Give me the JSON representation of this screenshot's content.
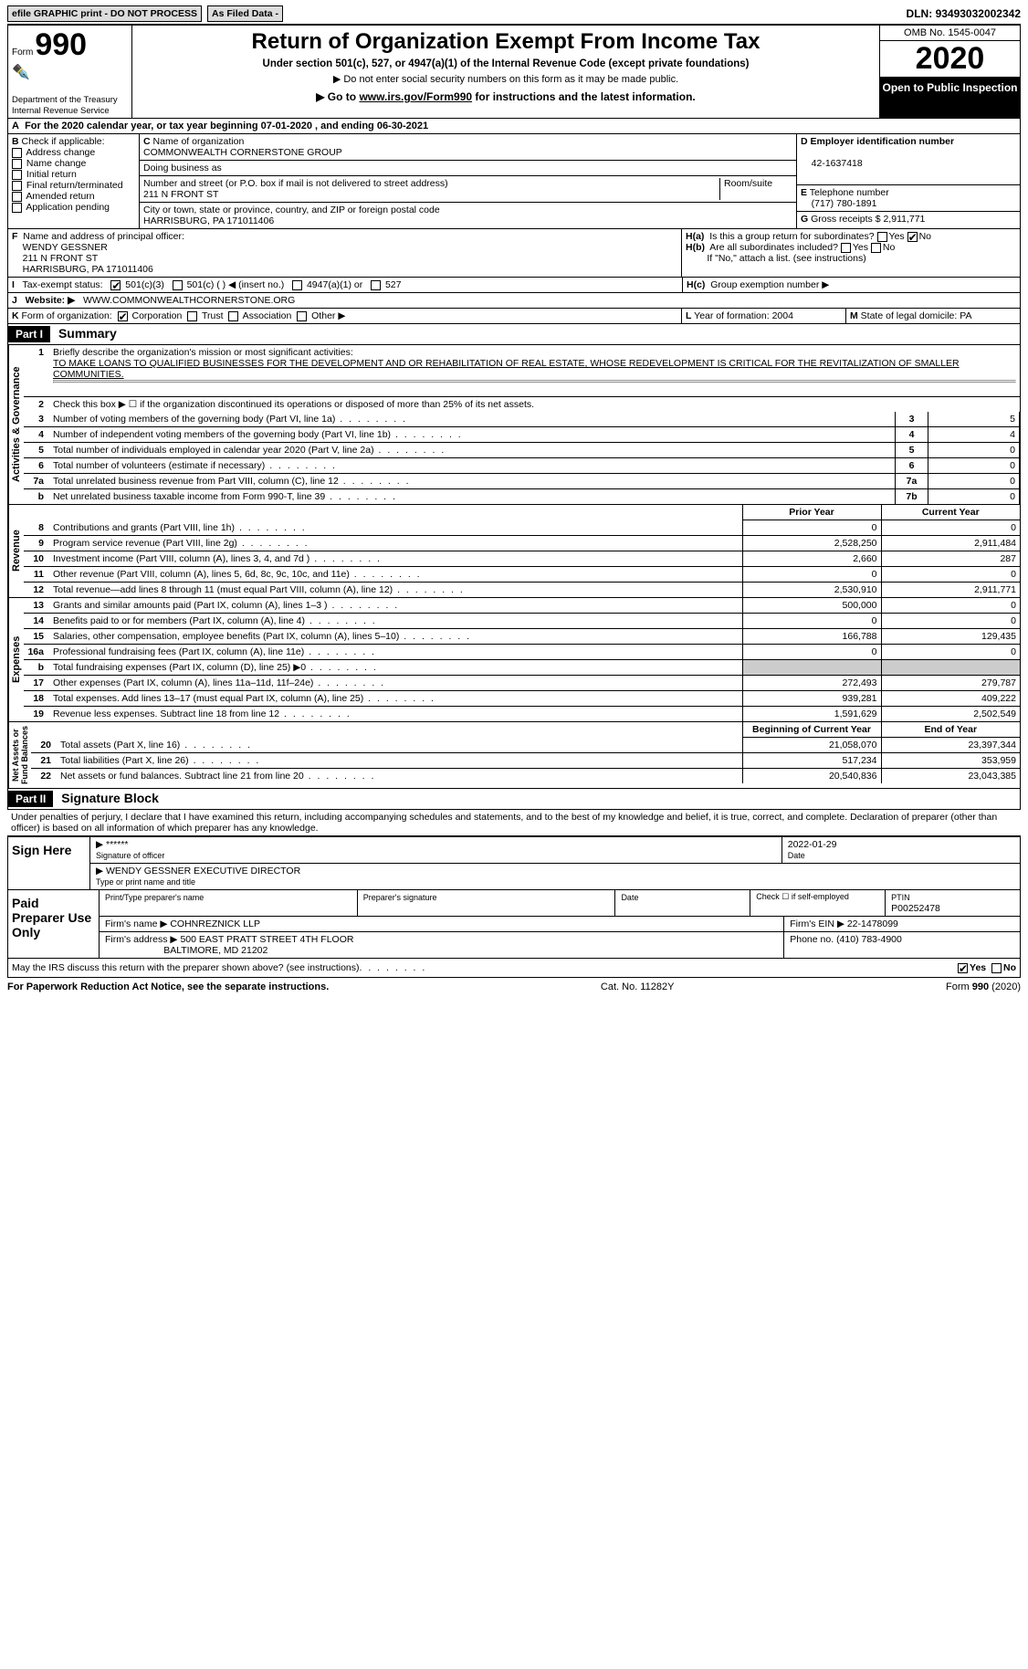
{
  "topbar": {
    "efile": "efile GRAPHIC print - DO NOT PROCESS",
    "asfiled": "As Filed Data -",
    "dln_label": "DLN:",
    "dln": "93493032002342"
  },
  "header": {
    "form": "Form",
    "num": "990",
    "dept": "Department of the Treasury\nInternal Revenue Service",
    "title": "Return of Organization Exempt From Income Tax",
    "sub": "Under section 501(c), 527, or 4947(a)(1) of the Internal Revenue Code (except private foundations)",
    "sub2": "▶ Do not enter social security numbers on this form as it may be made public.",
    "sub3": "▶ Go to www.irs.gov/Form990 for instructions and the latest information.",
    "omb": "OMB No. 1545-0047",
    "year": "2020",
    "inspect": "Open to Public Inspection"
  },
  "lineA": "For the 2020 calendar year, or tax year beginning 07-01-2020   , and ending 06-30-2021",
  "B": {
    "label": "Check if applicable:",
    "opts": [
      "Address change",
      "Name change",
      "Initial return",
      "Final return/terminated",
      "Amended return",
      "Application pending"
    ]
  },
  "C": {
    "name_label": "Name of organization",
    "name": "COMMONWEALTH CORNERSTONE GROUP",
    "dba_label": "Doing business as",
    "addr_label": "Number and street (or P.O. box if mail is not delivered to street address)",
    "room_label": "Room/suite",
    "addr": "211 N FRONT ST",
    "city_label": "City or town, state or province, country, and ZIP or foreign postal code",
    "city": "HARRISBURG, PA  171011406"
  },
  "D": {
    "label": "Employer identification number",
    "val": "42-1637418"
  },
  "E": {
    "label": "Telephone number",
    "val": "(717) 780-1891"
  },
  "G": {
    "label": "Gross receipts $",
    "val": "2,911,771"
  },
  "F": {
    "label": "Name and address of principal officer:",
    "name": "WENDY GESSNER",
    "addr1": "211 N FRONT ST",
    "addr2": "HARRISBURG, PA  171011406"
  },
  "H": {
    "a": "Is this a group return for subordinates?",
    "b": "Are all subordinates included?",
    "bnote": "If \"No,\" attach a list. (see instructions)",
    "c": "Group exemption number ▶"
  },
  "I": {
    "label": "Tax-exempt status:",
    "opts": [
      "501(c)(3)",
      "501(c) (  ) ◀ (insert no.)",
      "4947(a)(1) or",
      "527"
    ]
  },
  "J": {
    "label": "Website: ▶",
    "val": "WWW.COMMONWEALTHCORNERSTONE.ORG"
  },
  "K": {
    "label": "Form of organization:",
    "opts": [
      "Corporation",
      "Trust",
      "Association",
      "Other ▶"
    ]
  },
  "L": {
    "label": "Year of formation:",
    "val": "2004"
  },
  "M": {
    "label": "State of legal domicile:",
    "val": "PA"
  },
  "part1": {
    "label": "Part I",
    "title": "Summary",
    "l1": "Briefly describe the organization's mission or most significant activities:",
    "l1v": "TO MAKE LOANS TO QUALIFIED BUSINESSES FOR THE DEVELOPMENT AND OR REHABILITATION OF REAL ESTATE, WHOSE REDEVELOPMENT IS CRITICAL FOR THE REVITALIZATION OF SMALLER COMMUNITIES.",
    "l2": "Check this box ▶ ☐ if the organization discontinued its operations or disposed of more than 25% of its net assets.",
    "rows_a": [
      {
        "n": "3",
        "t": "Number of voting members of the governing body (Part VI, line 1a)",
        "b": "3",
        "v": "5"
      },
      {
        "n": "4",
        "t": "Number of independent voting members of the governing body (Part VI, line 1b)",
        "b": "4",
        "v": "4"
      },
      {
        "n": "5",
        "t": "Total number of individuals employed in calendar year 2020 (Part V, line 2a)",
        "b": "5",
        "v": "0"
      },
      {
        "n": "6",
        "t": "Total number of volunteers (estimate if necessary)",
        "b": "6",
        "v": "0"
      },
      {
        "n": "7a",
        "t": "Total unrelated business revenue from Part VIII, column (C), line 12",
        "b": "7a",
        "v": "0"
      },
      {
        "n": "b",
        "t": "Net unrelated business taxable income from Form 990-T, line 39",
        "b": "7b",
        "v": "0"
      }
    ],
    "py": "Prior Year",
    "cy": "Current Year",
    "rev": [
      {
        "n": "8",
        "t": "Contributions and grants (Part VIII, line 1h)",
        "p": "0",
        "c": "0"
      },
      {
        "n": "9",
        "t": "Program service revenue (Part VIII, line 2g)",
        "p": "2,528,250",
        "c": "2,911,484"
      },
      {
        "n": "10",
        "t": "Investment income (Part VIII, column (A), lines 3, 4, and 7d )",
        "p": "2,660",
        "c": "287"
      },
      {
        "n": "11",
        "t": "Other revenue (Part VIII, column (A), lines 5, 6d, 8c, 9c, 10c, and 11e)",
        "p": "0",
        "c": "0"
      },
      {
        "n": "12",
        "t": "Total revenue—add lines 8 through 11 (must equal Part VIII, column (A), line 12)",
        "p": "2,530,910",
        "c": "2,911,771"
      }
    ],
    "exp": [
      {
        "n": "13",
        "t": "Grants and similar amounts paid (Part IX, column (A), lines 1–3 )",
        "p": "500,000",
        "c": "0"
      },
      {
        "n": "14",
        "t": "Benefits paid to or for members (Part IX, column (A), line 4)",
        "p": "0",
        "c": "0"
      },
      {
        "n": "15",
        "t": "Salaries, other compensation, employee benefits (Part IX, column (A), lines 5–10)",
        "p": "166,788",
        "c": "129,435"
      },
      {
        "n": "16a",
        "t": "Professional fundraising fees (Part IX, column (A), line 11e)",
        "p": "0",
        "c": "0"
      },
      {
        "n": "b",
        "t": "Total fundraising expenses (Part IX, column (D), line 25) ▶0",
        "p": "",
        "c": ""
      },
      {
        "n": "17",
        "t": "Other expenses (Part IX, column (A), lines 11a–11d, 11f–24e)",
        "p": "272,493",
        "c": "279,787"
      },
      {
        "n": "18",
        "t": "Total expenses. Add lines 13–17 (must equal Part IX, column (A), line 25)",
        "p": "939,281",
        "c": "409,222"
      },
      {
        "n": "19",
        "t": "Revenue less expenses. Subtract line 18 from line 12",
        "p": "1,591,629",
        "c": "2,502,549"
      }
    ],
    "bcy": "Beginning of Current Year",
    "eoy": "End of Year",
    "net": [
      {
        "n": "20",
        "t": "Total assets (Part X, line 16)",
        "p": "21,058,070",
        "c": "23,397,344"
      },
      {
        "n": "21",
        "t": "Total liabilities (Part X, line 26)",
        "p": "517,234",
        "c": "353,959"
      },
      {
        "n": "22",
        "t": "Net assets or fund balances. Subtract line 21 from line 20",
        "p": "20,540,836",
        "c": "23,043,385"
      }
    ],
    "tabs": {
      "ag": "Activities & Governance",
      "rev": "Revenue",
      "exp": "Expenses",
      "net": "Net Assets or\nFund Balances"
    }
  },
  "part2": {
    "label": "Part II",
    "title": "Signature Block",
    "perjury": "Under penalties of perjury, I declare that I have examined this return, including accompanying schedules and statements, and to the best of my knowledge and belief, it is true, correct, and complete. Declaration of preparer (other than officer) is based on all information of which preparer has any knowledge.",
    "sign_here": "Sign Here",
    "sig_stars": "******",
    "sig_officer": "Signature of officer",
    "sig_date": "2022-01-29",
    "date_label": "Date",
    "name_title": "WENDY GESSNER  EXECUTIVE DIRECTOR",
    "type_label": "Type or print name and title",
    "paid": "Paid Preparer Use Only",
    "prep_name_l": "Print/Type preparer's name",
    "prep_sig_l": "Preparer's signature",
    "check_self": "Check ☐ if self-employed",
    "ptin_l": "PTIN",
    "ptin": "P00252478",
    "firm_l": "Firm's name   ▶",
    "firm": "COHNREZNICK LLP",
    "ein_l": "Firm's EIN ▶",
    "ein": "22-1478099",
    "addr_l": "Firm's address ▶",
    "addr": "500 EAST PRATT STREET 4TH FLOOR",
    "addr2": "BALTIMORE, MD  21202",
    "phone_l": "Phone no.",
    "phone": "(410) 783-4900",
    "may": "May the IRS discuss this return with the preparer shown above? (see instructions)",
    "yes": "Yes",
    "no": "No"
  },
  "footer": {
    "pra": "For Paperwork Reduction Act Notice, see the separate instructions.",
    "cat": "Cat. No. 11282Y",
    "form": "Form 990 (2020)"
  }
}
